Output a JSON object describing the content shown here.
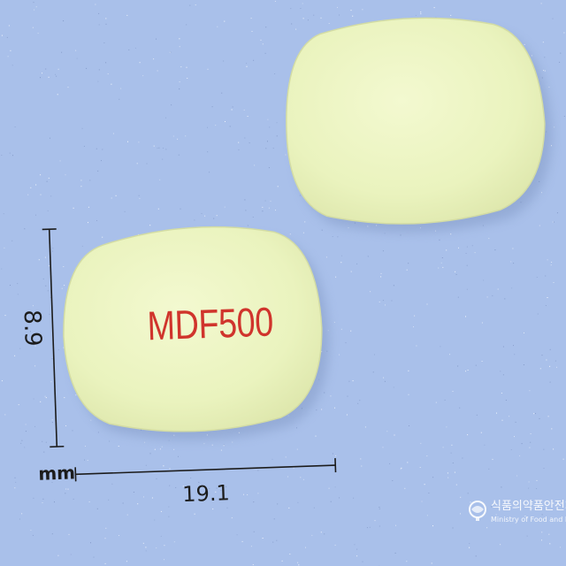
{
  "imprint": {
    "front": "MDF500"
  },
  "dimensions": {
    "height": "8.9",
    "width": "19.1",
    "unit": "mm"
  },
  "watermark": {
    "name_ko": "식품의약품안전처",
    "name_en": "Ministry of Food and Drug Safety"
  },
  "colors": {
    "background": "#a9c0ea",
    "tablet": "#eef5c4",
    "imprint": "#d0342c",
    "scale_lines": "#1c1c1c"
  }
}
